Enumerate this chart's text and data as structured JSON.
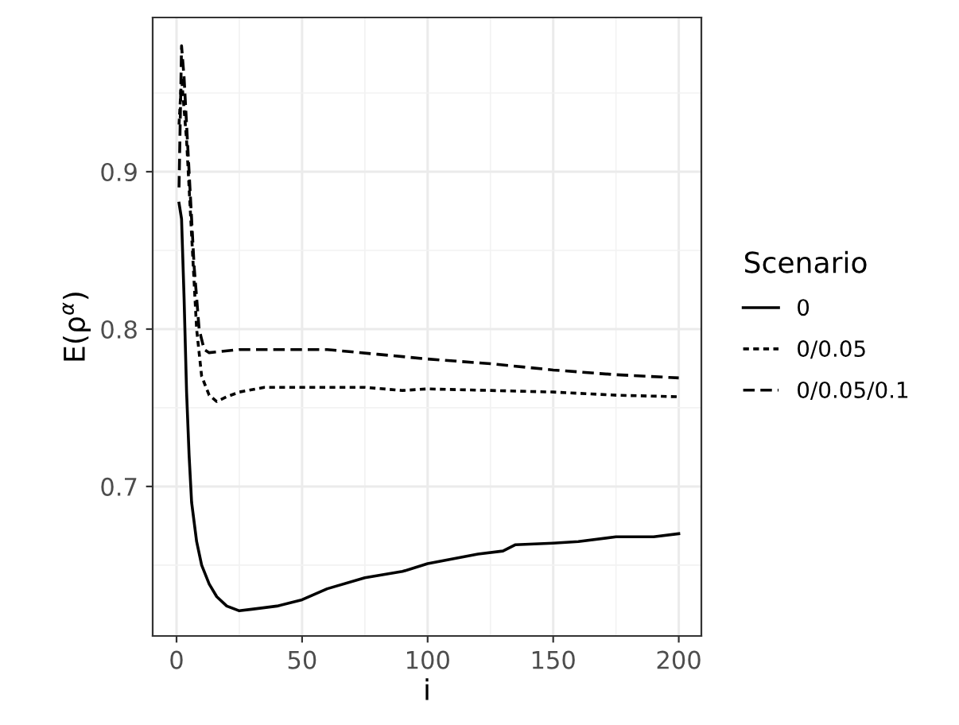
{
  "chart_data": {
    "type": "line",
    "xlabel": "i",
    "ylabel": "E(ρ$^{α}$)",
    "legend_title": "Scenario",
    "legend": "right",
    "grid": true,
    "xlim": [
      -9.5,
      209
    ],
    "xticks": [
      0,
      50,
      100,
      150,
      200
    ],
    "ylim": [
      0.605,
      0.998
    ],
    "yticks": [
      0.7,
      0.8,
      0.9
    ],
    "series": [
      {
        "name": "0",
        "color": "#000000",
        "line_style": "solid",
        "x": [
          1,
          2,
          3,
          4,
          5,
          6,
          8,
          10,
          13,
          16,
          20,
          25,
          30,
          40,
          50,
          60,
          75,
          90,
          100,
          120,
          130,
          135,
          150,
          160,
          175,
          190,
          200
        ],
        "values": [
          0.88,
          0.87,
          0.82,
          0.76,
          0.72,
          0.69,
          0.665,
          0.65,
          0.638,
          0.63,
          0.624,
          0.621,
          0.622,
          0.624,
          0.628,
          0.635,
          0.642,
          0.646,
          0.651,
          0.657,
          0.659,
          0.663,
          0.664,
          0.665,
          0.668,
          0.668,
          0.67
        ]
      },
      {
        "name": "0/0.05",
        "color": "#000000",
        "line_style": "dotted",
        "x": [
          1,
          2,
          4,
          6,
          8,
          10,
          13,
          16,
          20,
          25,
          35,
          50,
          75,
          90,
          100,
          125,
          150,
          175,
          200
        ],
        "values": [
          0.93,
          0.96,
          0.92,
          0.86,
          0.8,
          0.77,
          0.758,
          0.754,
          0.757,
          0.76,
          0.763,
          0.763,
          0.763,
          0.761,
          0.762,
          0.761,
          0.76,
          0.758,
          0.757
        ]
      },
      {
        "name": "0/0.05/0.1",
        "color": "#000000",
        "line_style": "dashed",
        "x": [
          1,
          2,
          3,
          5,
          7,
          9,
          11,
          13,
          25,
          40,
          60,
          80,
          100,
          125,
          150,
          175,
          200
        ],
        "values": [
          0.89,
          0.98,
          0.96,
          0.9,
          0.84,
          0.8,
          0.787,
          0.785,
          0.787,
          0.787,
          0.787,
          0.784,
          0.781,
          0.778,
          0.774,
          0.771,
          0.769
        ]
      }
    ]
  }
}
